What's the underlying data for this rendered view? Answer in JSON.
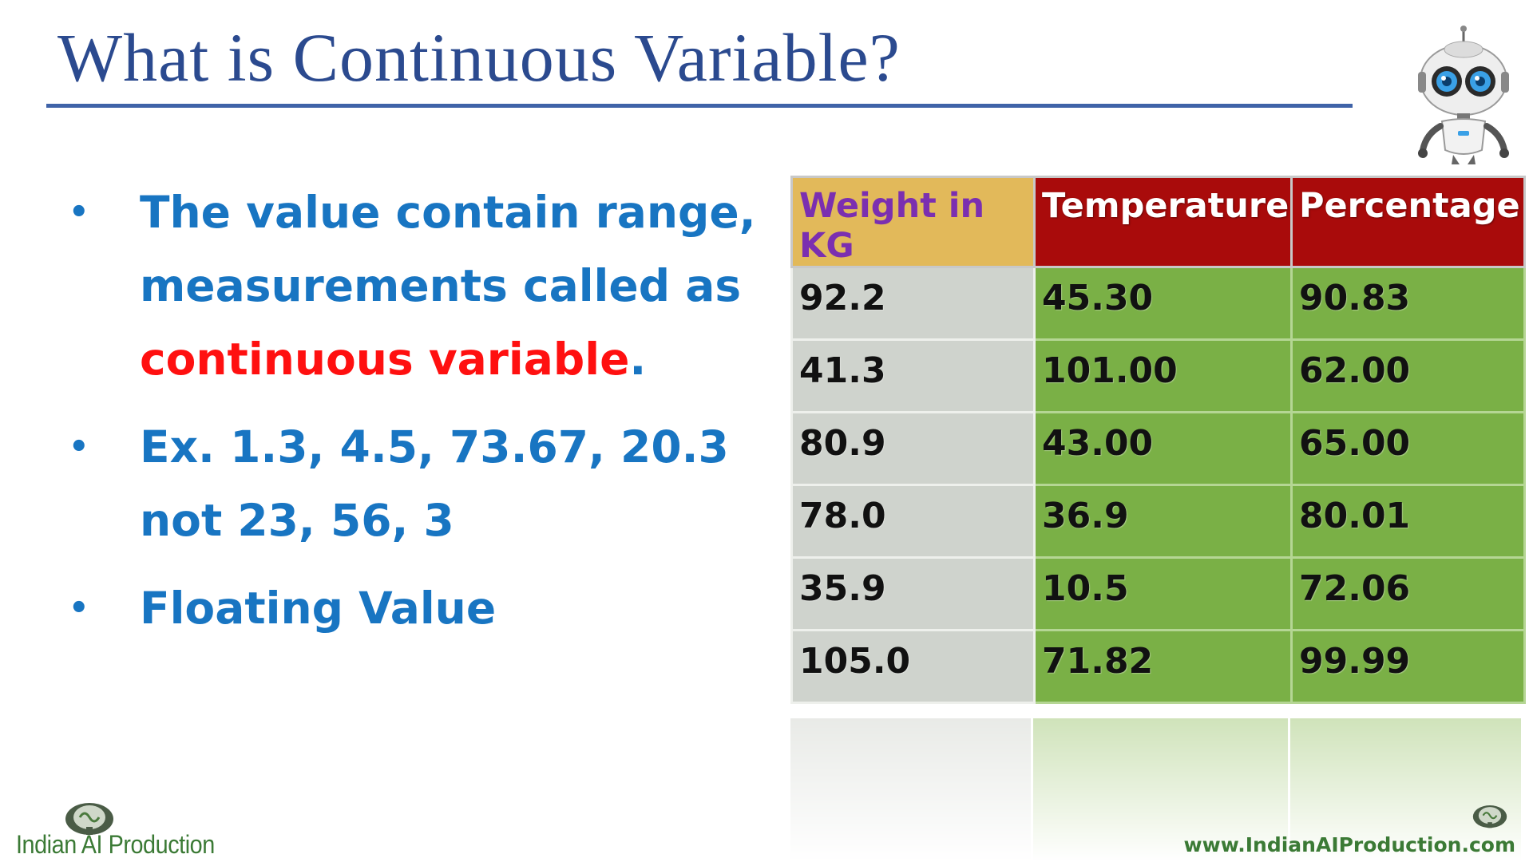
{
  "slide": {
    "title": "What is Continuous Variable?",
    "bullets": [
      {
        "text": "The value contain range, measurements called as ",
        "highlight": "continuous variable",
        "suffix": "."
      },
      {
        "text": "Ex. 1.3, 4.5, 73.67, 20.3 not 23, 56, 3"
      },
      {
        "text": "Floating Value"
      }
    ],
    "table": {
      "headers": [
        "Weight in KG",
        "Temperature",
        "Percentage"
      ],
      "rows": [
        [
          "92.2",
          "45.30",
          "90.83"
        ],
        [
          "41.3",
          "101.00",
          "62.00"
        ],
        [
          "80.9",
          "43.00",
          "65.00"
        ],
        [
          "78.0",
          "36.9",
          "80.01"
        ],
        [
          "35.9",
          "10.5",
          "72.06"
        ],
        [
          "105.0",
          "71.82",
          "99.99"
        ]
      ]
    },
    "footer": {
      "brand": "Indian AI Production",
      "website": "www.IndianAIProduction.com"
    }
  },
  "icons": [
    "robot-icon",
    "brain-logo-icon"
  ],
  "colors": {
    "title": "#2b4a8f",
    "bullet_text": "#1875c2",
    "highlight": "#ff1010",
    "header_red": "#a90b0b",
    "header_gold": "#e2b95a",
    "cell_grey": "#cfd3cd",
    "cell_green": "#7ab046",
    "footer_green": "#3b7a35"
  }
}
